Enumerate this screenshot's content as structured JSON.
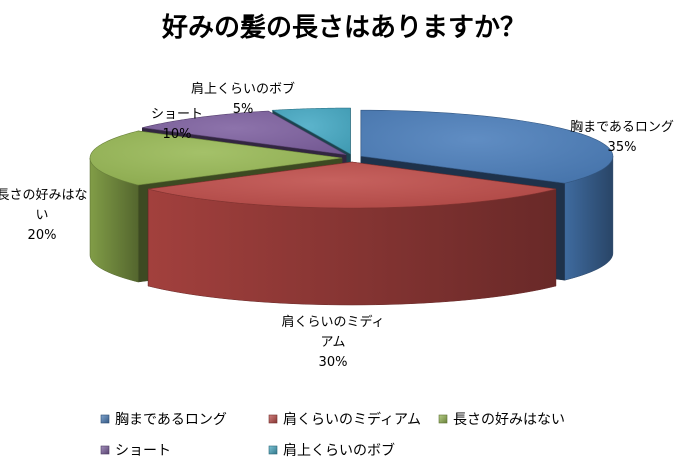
{
  "chart_data": {
    "type": "pie",
    "title": "好みの髪の長さはありますか？",
    "categories": [
      "胸まであるロング",
      "肩くらいのミディアム",
      "長さの好みはない",
      "ショート",
      "肩上くらいのボブ"
    ],
    "values": [
      35,
      30,
      20,
      10,
      5
    ],
    "value_labels": [
      "35%",
      "30%",
      "20%",
      "10%",
      "5%"
    ],
    "slice_labels": [
      {
        "lines": [
          "胸まであるロング"
        ],
        "pct": "35%"
      },
      {
        "lines": [
          "肩くらいのミディ",
          "アム"
        ],
        "pct": "30%"
      },
      {
        "lines": [
          "長さの好みはな",
          "い"
        ],
        "pct": "20%"
      },
      {
        "lines": [
          "ショート"
        ],
        "pct": "10%"
      },
      {
        "lines": [
          "肩上くらいのボブ"
        ],
        "pct": "5%"
      }
    ],
    "colors": [
      "#4A7EBB",
      "#BE4B48",
      "#98B954",
      "#7D60A0",
      "#46AAC5"
    ],
    "legend": {
      "placement": "bottom",
      "entries": [
        "胸まであるロング",
        "肩くらいのミディアム",
        "長さの好みはない",
        "ショート",
        "肩上くらいのボブ"
      ]
    },
    "style": "3d-exploded"
  }
}
